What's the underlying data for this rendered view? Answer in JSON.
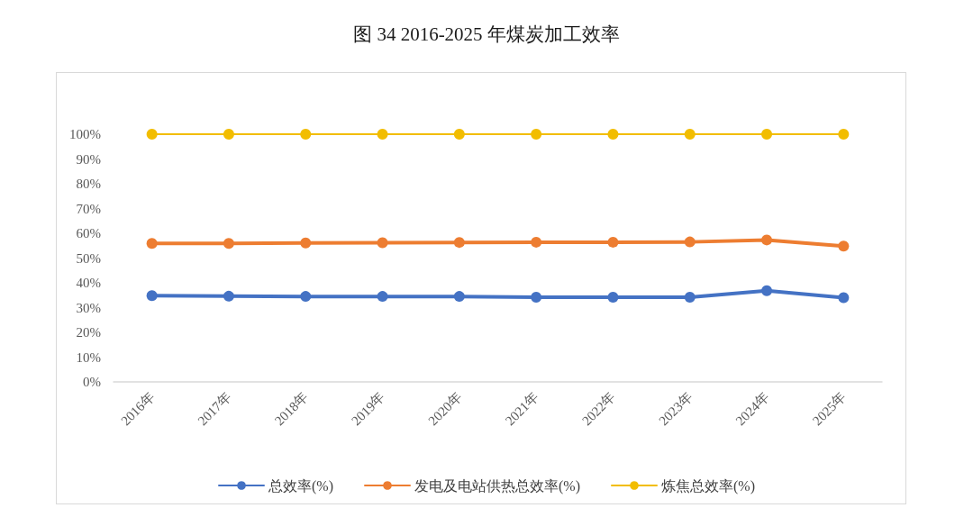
{
  "chart_data": {
    "type": "line",
    "title": "图 34 2016-2025 年煤炭加工效率",
    "categories": [
      "2016年",
      "2017年",
      "2018年",
      "2019年",
      "2020年",
      "2021年",
      "2022年",
      "2023年",
      "2024年",
      "2025年"
    ],
    "series": [
      {
        "name": "总效率(%)",
        "color": "#4472c4",
        "values": [
          34.8,
          34.6,
          34.5,
          34.5,
          34.5,
          34.2,
          34.2,
          34.2,
          36.8,
          34.0
        ]
      },
      {
        "name": "发电及电站供热总效率(%)",
        "color": "#ed7d31",
        "values": [
          55.9,
          55.9,
          56.1,
          56.2,
          56.3,
          56.4,
          56.4,
          56.5,
          57.3,
          54.8
        ]
      },
      {
        "name": "炼焦总效率(%)",
        "color": "#f2bd00",
        "values": [
          100,
          100,
          100,
          100,
          100,
          100,
          100,
          100,
          100,
          100
        ]
      }
    ],
    "ylim": [
      0,
      100
    ],
    "yticks": [
      {
        "value": 0,
        "label": "0%"
      },
      {
        "value": 10,
        "label": "10%"
      },
      {
        "value": 20,
        "label": "20%"
      },
      {
        "value": 30,
        "label": "30%"
      },
      {
        "value": 40,
        "label": "40%"
      },
      {
        "value": 50,
        "label": "50%"
      },
      {
        "value": 60,
        "label": "60%"
      },
      {
        "value": 70,
        "label": "70%"
      },
      {
        "value": 80,
        "label": "80%"
      },
      {
        "value": 90,
        "label": "90%"
      },
      {
        "value": 100,
        "label": "100%"
      }
    ],
    "grid": false,
    "legend": "bottom",
    "marker": "circle",
    "line_style": "solid"
  }
}
